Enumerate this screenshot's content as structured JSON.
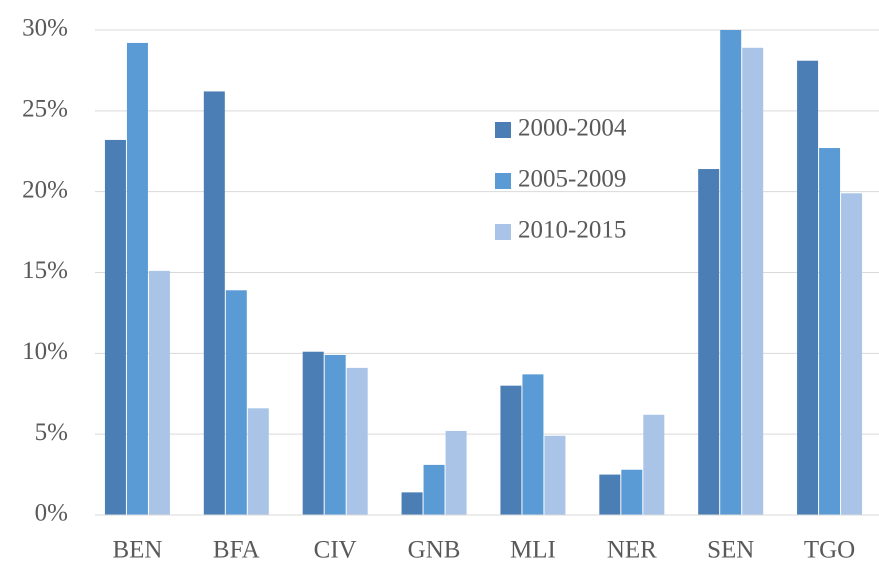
{
  "chart_data": {
    "type": "bar",
    "categories": [
      "BEN",
      "BFA",
      "CIV",
      "GNB",
      "MLI",
      "NER",
      "SEN",
      "TGO"
    ],
    "series": [
      {
        "name": "2000-2004",
        "color": "#4a7eb4",
        "values": [
          23.2,
          26.2,
          10.1,
          1.4,
          8.0,
          2.5,
          21.4,
          28.1
        ]
      },
      {
        "name": "2005-2009",
        "color": "#5b9bd5",
        "values": [
          29.2,
          13.9,
          9.9,
          3.1,
          8.7,
          2.8,
          30.0,
          22.7
        ]
      },
      {
        "name": "2010-2015",
        "color": "#a9c4e6",
        "values": [
          15.1,
          6.6,
          9.1,
          5.2,
          4.9,
          6.2,
          28.9,
          19.9
        ]
      }
    ],
    "ylim": [
      0,
      30
    ],
    "yticks": [
      {
        "value": 0,
        "label": "0%"
      },
      {
        "value": 5,
        "label": "5%"
      },
      {
        "value": 10,
        "label": "10%"
      },
      {
        "value": 15,
        "label": "15%"
      },
      {
        "value": 20,
        "label": "20%"
      },
      {
        "value": 25,
        "label": "25%"
      },
      {
        "value": 30,
        "label": "30%"
      }
    ],
    "grid": true
  }
}
